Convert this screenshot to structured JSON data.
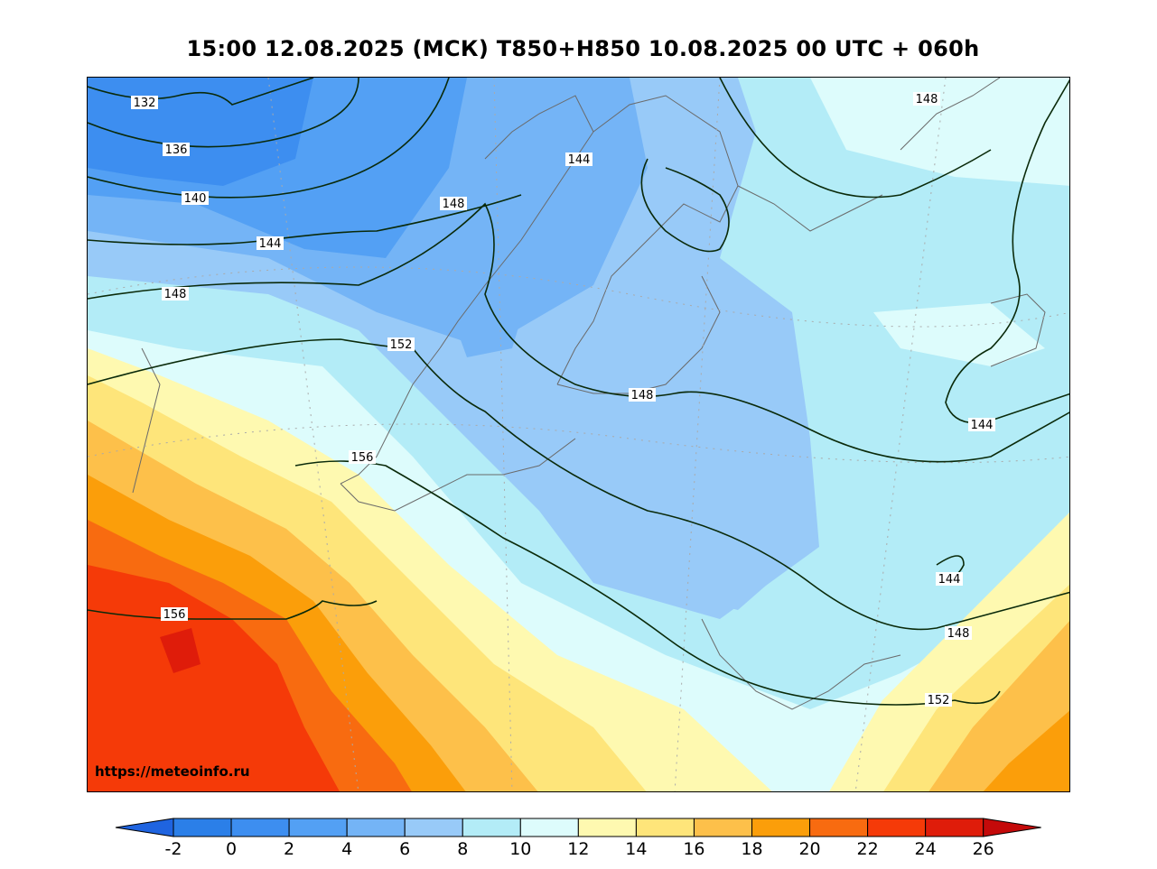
{
  "title": "15:00 12.08.2025 (МСК) T850+H850 10.08.2025 00 UTC + 060h",
  "watermark": "https://meteoinfo.ru",
  "colorbar": {
    "ticks": [
      "-2",
      "0",
      "2",
      "4",
      "6",
      "8",
      "10",
      "12",
      "14",
      "16",
      "18",
      "20",
      "22",
      "24",
      "26"
    ],
    "colors": [
      "#2b7fe8",
      "#3d8ef0",
      "#53a0f4",
      "#74b4f6",
      "#98caf8",
      "#b3ecf7",
      "#ddfcfc",
      "#fef9b0",
      "#fee57a",
      "#fdc04a",
      "#fb9e0a",
      "#f86b10",
      "#f53a08",
      "#df1c0a"
    ],
    "under_color": "#1f64e0",
    "over_color": "#c40a0a"
  },
  "isohypse_labels": [
    {
      "text": "132"
    },
    {
      "text": "136"
    },
    {
      "text": "140"
    },
    {
      "text": "144"
    },
    {
      "text": "148"
    },
    {
      "text": "148"
    },
    {
      "text": "144"
    },
    {
      "text": "148"
    },
    {
      "text": "152"
    },
    {
      "text": "148"
    },
    {
      "text": "156"
    },
    {
      "text": "144"
    },
    {
      "text": "144"
    },
    {
      "text": "148"
    },
    {
      "text": "156"
    },
    {
      "text": "152"
    }
  ]
}
